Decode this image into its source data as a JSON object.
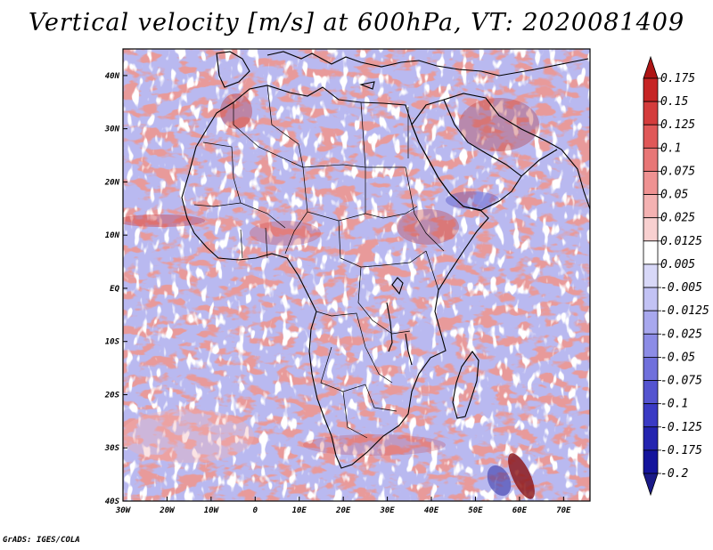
{
  "title": "Vertical velocity [m/s] at 600hPa, VT: 2020081409",
  "footer": "GrADS: IGES/COLA",
  "map": {
    "lon_range": [
      -30,
      76
    ],
    "lat_range": [
      -40,
      45
    ],
    "lon_ticks": [
      {
        "value": -30,
        "label": "30W"
      },
      {
        "value": -20,
        "label": "20W"
      },
      {
        "value": -10,
        "label": "10W"
      },
      {
        "value": 0,
        "label": "0"
      },
      {
        "value": 10,
        "label": "10E"
      },
      {
        "value": 20,
        "label": "20E"
      },
      {
        "value": 30,
        "label": "30E"
      },
      {
        "value": 40,
        "label": "40E"
      },
      {
        "value": 50,
        "label": "50E"
      },
      {
        "value": 60,
        "label": "60E"
      },
      {
        "value": 70,
        "label": "70E"
      }
    ],
    "lat_ticks": [
      {
        "value": 40,
        "label": "40N"
      },
      {
        "value": 30,
        "label": "30N"
      },
      {
        "value": 20,
        "label": "20N"
      },
      {
        "value": 10,
        "label": "10N"
      },
      {
        "value": 0,
        "label": "EQ"
      },
      {
        "value": -10,
        "label": "10S"
      },
      {
        "value": -20,
        "label": "20S"
      },
      {
        "value": -30,
        "label": "30S"
      },
      {
        "value": -40,
        "label": "40S"
      }
    ]
  },
  "colorbar": {
    "labels": [
      "0.175",
      "0.15",
      "0.125",
      "0.1",
      "0.075",
      "0.05",
      "0.025",
      "0.0125",
      "0.005",
      "-0.005",
      "-0.0125",
      "-0.025",
      "-0.05",
      "-0.075",
      "-0.1",
      "-0.125",
      "-0.175",
      "-0.2"
    ],
    "colors": [
      "#ad1515",
      "#c62424",
      "#d43c3c",
      "#e05858",
      "#e87676",
      "#ef9292",
      "#f4b2b2",
      "#f8d0d0",
      "#ffffff",
      "#d8d8f8",
      "#c2c2f4",
      "#a8a8ee",
      "#8c8ce6",
      "#7070dc",
      "#5454d0",
      "#3a3ac4",
      "#2424b0",
      "#14149c",
      "#1a1a88"
    ]
  }
}
